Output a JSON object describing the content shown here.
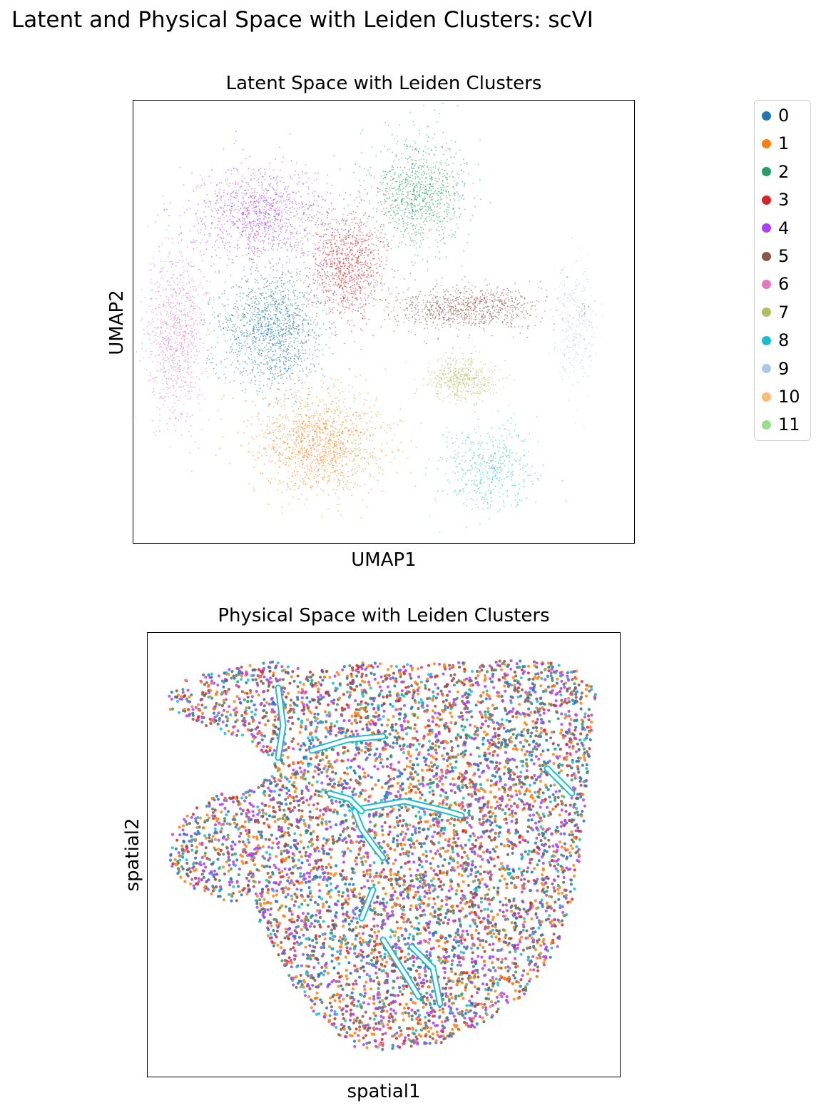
{
  "suptitle": "Latent and Physical Space with Leiden Clusters: scVI",
  "legend": {
    "items": [
      {
        "label": "0",
        "color": "#1f77b4"
      },
      {
        "label": "1",
        "color": "#ff7f0e"
      },
      {
        "label": "2",
        "color": "#279e68"
      },
      {
        "label": "3",
        "color": "#d62728"
      },
      {
        "label": "4",
        "color": "#aa40fc"
      },
      {
        "label": "5",
        "color": "#8c564b"
      },
      {
        "label": "6",
        "color": "#e377c2"
      },
      {
        "label": "7",
        "color": "#b5bd61"
      },
      {
        "label": "8",
        "color": "#17becf"
      },
      {
        "label": "9",
        "color": "#aec7e8"
      },
      {
        "label": "10",
        "color": "#ffbb78"
      },
      {
        "label": "11",
        "color": "#98df8a"
      }
    ]
  },
  "chart_data": [
    {
      "type": "scatter",
      "title": "Latent Space with Leiden Clusters",
      "xlabel": "UMAP1",
      "ylabel": "UMAP2",
      "ticks": false,
      "grid": false,
      "legend_position": "right, outside",
      "color_by": "leiden cluster",
      "clusters": [
        {
          "label": "0",
          "region": "center-left"
        },
        {
          "label": "1",
          "region": "bottom-center"
        },
        {
          "label": "2",
          "region": "top-right"
        },
        {
          "label": "3",
          "region": "upper-center"
        },
        {
          "label": "4",
          "region": "upper-left"
        },
        {
          "label": "5",
          "region": "middle-right"
        },
        {
          "label": "6",
          "region": "far-left"
        },
        {
          "label": "7",
          "region": "lower-right"
        },
        {
          "label": "8",
          "region": "bottom-right"
        },
        {
          "label": "9",
          "region": "far-right"
        }
      ]
    },
    {
      "type": "scatter",
      "title": "Physical Space with Leiden Clusters",
      "xlabel": "spatial1",
      "ylabel": "spatial2",
      "ticks": false,
      "grid": false,
      "color_by": "leiden cluster",
      "dominant_clusters": [
        "0",
        "1",
        "4",
        "5",
        "3",
        "8"
      ]
    }
  ]
}
